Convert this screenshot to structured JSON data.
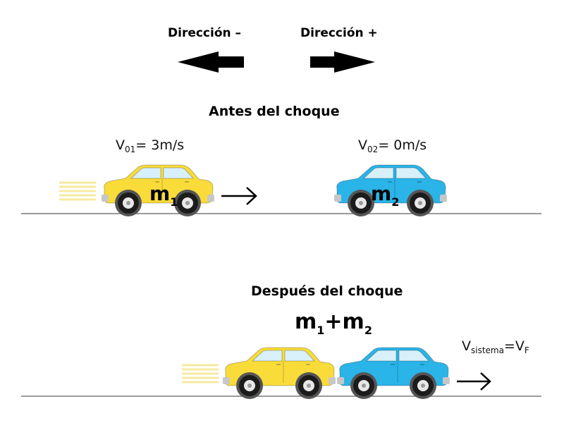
{
  "directions": {
    "negative": "Dirección –",
    "positive": "Dirección +"
  },
  "before": {
    "title": "Antes del choque",
    "car1": {
      "v_main": "V",
      "v_sub": "01",
      "v_rest": "= 3m/s",
      "mass_main": "m",
      "mass_sub": "1",
      "color": "#f9dc3a"
    },
    "car2": {
      "v_main": "V",
      "v_sub": "02",
      "v_rest": "= 0m/s",
      "mass_main": "m",
      "mass_sub": "2",
      "color": "#2ab4e8"
    }
  },
  "after": {
    "title": "Después del choque",
    "mass": {
      "m1": "m",
      "s1": "1",
      "plus": "+",
      "m2": "m",
      "s2": "2"
    },
    "velocity": {
      "v1": "V",
      "sub1": "sistema",
      "eq": "=",
      "v2": "V",
      "sub2": "F"
    }
  },
  "colors": {
    "yellow": "#f9dc3a",
    "blue": "#2ab4e8",
    "ground": "#9a9a9a",
    "speed_lines": "#f6eaa0"
  }
}
